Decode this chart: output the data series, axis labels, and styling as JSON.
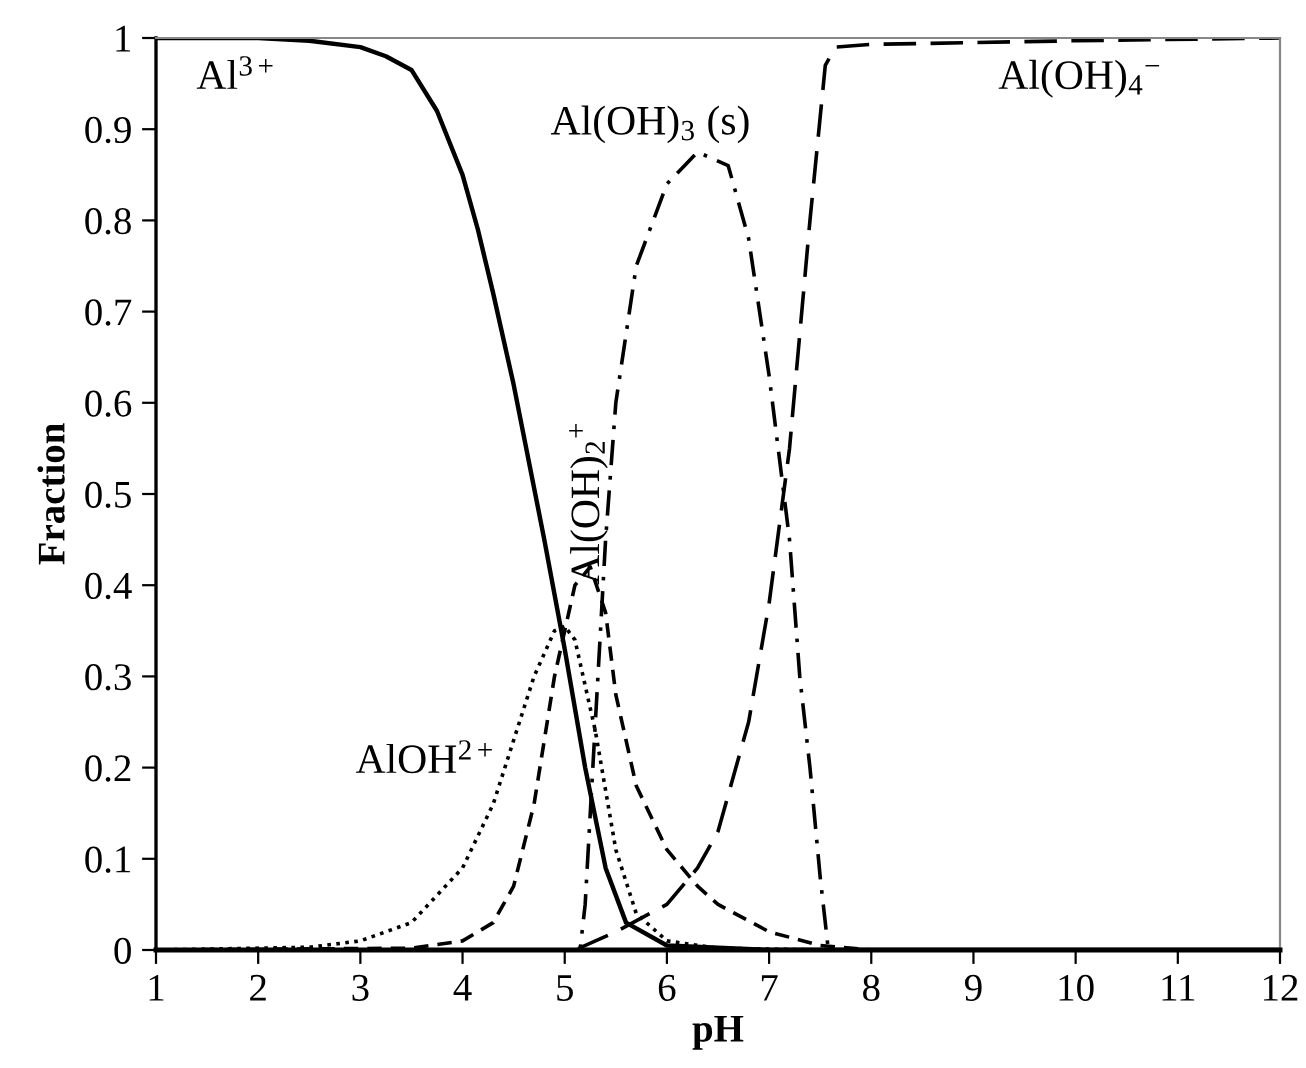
{
  "chart_data": {
    "type": "line",
    "xlabel": "pH",
    "ylabel": "Fraction",
    "xlim": [
      1,
      12
    ],
    "ylim": [
      0,
      1
    ],
    "xticks": [
      1,
      2,
      3,
      4,
      5,
      6,
      7,
      8,
      9,
      10,
      11,
      12
    ],
    "yticks": [
      0,
      0.1,
      0.2,
      0.3,
      0.4,
      0.5,
      0.6,
      0.7,
      0.8,
      0.9,
      1
    ],
    "grid": false,
    "legend": false,
    "marker": "none",
    "series": [
      {
        "name": "Al$^{3+}$",
        "color": "#000000",
        "line_style": "solid",
        "x": [
          1,
          2,
          2.5,
          3,
          3.25,
          3.5,
          3.75,
          4,
          4.15,
          4.3,
          4.5,
          4.8,
          5,
          5.2,
          5.4,
          5.6,
          6,
          7,
          12
        ],
        "values": [
          1,
          1,
          0.997,
          0.99,
          0.98,
          0.965,
          0.92,
          0.85,
          0.79,
          0.72,
          0.62,
          0.45,
          0.33,
          0.2,
          0.09,
          0.03,
          0.005,
          0,
          0
        ]
      },
      {
        "name": "AlOH$^{2+}$",
        "color": "#000000",
        "line_style": "dotted",
        "x": [
          1,
          2.5,
          3,
          3.5,
          4,
          4.3,
          4.5,
          4.7,
          4.9,
          5,
          5.1,
          5.3,
          5.5,
          5.7,
          6,
          6.5,
          7.5,
          12
        ],
        "values": [
          0,
          0.003,
          0.01,
          0.03,
          0.09,
          0.16,
          0.23,
          0.3,
          0.35,
          0.355,
          0.34,
          0.24,
          0.11,
          0.04,
          0.01,
          0.002,
          0,
          0
        ]
      },
      {
        "name": "Al(OH)$_{2}$$^{+}$",
        "color": "#000000",
        "line_style": "dashed",
        "x": [
          1,
          3.5,
          4,
          4.3,
          4.5,
          4.7,
          4.9,
          5.1,
          5.25,
          5.4,
          5.5,
          5.7,
          6,
          6.3,
          6.5,
          7,
          7.5,
          8,
          12
        ],
        "values": [
          0,
          0.002,
          0.01,
          0.03,
          0.07,
          0.16,
          0.3,
          0.4,
          0.42,
          0.37,
          0.28,
          0.18,
          0.11,
          0.07,
          0.05,
          0.02,
          0.005,
          0,
          0
        ]
      },
      {
        "name": "Al(OH)$_{3}$ (s)",
        "color": "#000000",
        "line_style": "dashdot",
        "x": [
          1,
          5.15,
          5.2,
          5.3,
          5.4,
          5.5,
          5.7,
          6,
          6.3,
          6.6,
          6.8,
          7,
          7.2,
          7.3,
          7.4,
          7.5,
          7.58,
          12
        ],
        "values": [
          0,
          0,
          0.05,
          0.25,
          0.45,
          0.6,
          0.75,
          0.84,
          0.875,
          0.86,
          0.78,
          0.63,
          0.45,
          0.3,
          0.2,
          0.08,
          0,
          0
        ]
      },
      {
        "name": "Al(OH)$_{4}$$^{−}$",
        "color": "#000000",
        "line_style": "longdash",
        "x": [
          1,
          5.1,
          5.5,
          6,
          6.3,
          6.5,
          6.8,
          7,
          7.2,
          7.4,
          7.55,
          7.65,
          8,
          10,
          12
        ],
        "values": [
          0,
          0,
          0.02,
          0.05,
          0.09,
          0.13,
          0.25,
          0.38,
          0.55,
          0.8,
          0.97,
          0.99,
          0.993,
          0.997,
          1
        ]
      }
    ]
  }
}
